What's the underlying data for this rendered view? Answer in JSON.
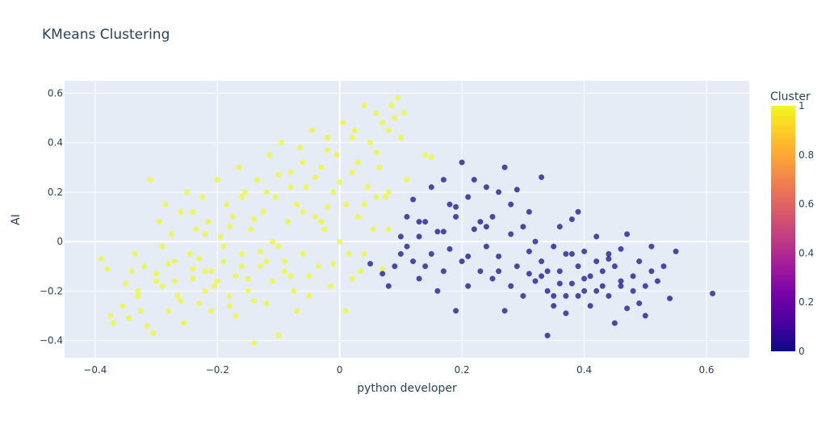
{
  "chart_data": {
    "type": "scatter",
    "title": "KMeans Clustering",
    "xlabel": "python developer",
    "ylabel": "AI",
    "xlim": [
      -0.45,
      0.67
    ],
    "ylim": [
      -0.47,
      0.65
    ],
    "xticks": [
      -0.4,
      -0.2,
      0,
      0.2,
      0.4,
      0.6
    ],
    "xtick_labels": [
      "−0.4",
      "−0.2",
      "0",
      "0.2",
      "0.4",
      "0.6"
    ],
    "yticks": [
      -0.4,
      -0.2,
      0,
      0.2,
      0.4,
      0.6
    ],
    "ytick_labels": [
      "−0.4",
      "−0.2",
      "0",
      "0.2",
      "0.4",
      "0.6"
    ],
    "grid": true,
    "colorbar": {
      "title": "Cluster",
      "ticks": [
        0,
        0.2,
        0.4,
        0.6,
        0.8,
        1
      ],
      "tick_labels": [
        "0",
        "0.2",
        "0.4",
        "0.6",
        "0.8",
        "1"
      ],
      "colorscale": [
        "#0d0887",
        "#46039f",
        "#7201a8",
        "#9c179e",
        "#bd3786",
        "#d8576b",
        "#ed7953",
        "#fb9f3a",
        "#fdca26",
        "#f0f921"
      ]
    },
    "series": [
      {
        "cluster": 1,
        "color": "#f0f921",
        "points": [
          [
            -0.39,
            -0.07
          ],
          [
            -0.38,
            -0.11
          ],
          [
            -0.375,
            -0.3
          ],
          [
            -0.37,
            -0.33
          ],
          [
            -0.355,
            -0.26
          ],
          [
            -0.35,
            -0.17
          ],
          [
            -0.345,
            -0.31
          ],
          [
            -0.34,
            -0.12
          ],
          [
            -0.335,
            -0.05
          ],
          [
            -0.33,
            -0.2
          ],
          [
            -0.325,
            -0.28
          ],
          [
            -0.32,
            -0.1
          ],
          [
            -0.315,
            -0.34
          ],
          [
            -0.31,
            0.25
          ],
          [
            -0.305,
            -0.37
          ],
          [
            -0.3,
            -0.13
          ],
          [
            -0.295,
            0.08
          ],
          [
            -0.29,
            -0.18
          ],
          [
            -0.285,
            0.15
          ],
          [
            -0.28,
            -0.28
          ],
          [
            -0.275,
            0.03
          ],
          [
            -0.27,
            -0.08
          ],
          [
            -0.265,
            -0.22
          ],
          [
            -0.26,
            0.12
          ],
          [
            -0.255,
            -0.33
          ],
          [
            -0.25,
            0.2
          ],
          [
            -0.245,
            -0.05
          ],
          [
            -0.24,
            -0.15
          ],
          [
            -0.235,
            0.05
          ],
          [
            -0.23,
            -0.25
          ],
          [
            -0.225,
            0.18
          ],
          [
            -0.22,
            -0.12
          ],
          [
            -0.215,
            0.08
          ],
          [
            -0.21,
            -0.28
          ],
          [
            -0.205,
            -0.18
          ],
          [
            -0.2,
            0.25
          ],
          [
            -0.195,
            0.02
          ],
          [
            -0.19,
            -0.08
          ],
          [
            -0.185,
            0.15
          ],
          [
            -0.18,
            -0.22
          ],
          [
            -0.175,
            0.1
          ],
          [
            -0.17,
            -0.3
          ],
          [
            -0.165,
            0.3
          ],
          [
            -0.16,
            -0.05
          ],
          [
            -0.155,
            0.2
          ],
          [
            -0.15,
            -0.15
          ],
          [
            -0.145,
            0.05
          ],
          [
            -0.14,
            -0.41
          ],
          [
            -0.135,
            0.25
          ],
          [
            -0.13,
            -0.1
          ],
          [
            -0.125,
            0.12
          ],
          [
            -0.12,
            -0.25
          ],
          [
            -0.115,
            0.35
          ],
          [
            -0.11,
            0.0
          ],
          [
            -0.105,
            0.18
          ],
          [
            -0.1,
            -0.38
          ],
          [
            -0.095,
            0.4
          ],
          [
            -0.09,
            -0.12
          ],
          [
            -0.085,
            0.08
          ],
          [
            -0.08,
            0.28
          ],
          [
            -0.075,
            -0.2
          ],
          [
            -0.07,
            0.15
          ],
          [
            -0.065,
            0.38
          ],
          [
            -0.06,
            -0.05
          ],
          [
            -0.055,
            0.22
          ],
          [
            -0.05,
            -0.22
          ],
          [
            -0.045,
            0.45
          ],
          [
            -0.04,
            0.1
          ],
          [
            -0.035,
            -0.1
          ],
          [
            -0.03,
            0.3
          ],
          [
            -0.025,
            0.05
          ],
          [
            -0.02,
            0.42
          ],
          [
            -0.015,
            -0.18
          ],
          [
            -0.01,
            0.2
          ],
          [
            -0.005,
            0.35
          ],
          [
            0.0,
            0.0
          ],
          [
            0.005,
            0.48
          ],
          [
            0.01,
            0.15
          ],
          [
            0.015,
            -0.05
          ],
          [
            0.02,
            0.28
          ],
          [
            0.025,
            0.45
          ],
          [
            0.03,
            0.1
          ],
          [
            0.035,
            -0.12
          ],
          [
            0.04,
            0.55
          ],
          [
            0.045,
            0.22
          ],
          [
            0.05,
            0.4
          ],
          [
            0.055,
            0.05
          ],
          [
            0.06,
            0.52
          ],
          [
            0.065,
            0.3
          ],
          [
            0.07,
            0.48
          ],
          [
            0.075,
            0.18
          ],
          [
            0.08,
            0.45
          ],
          [
            0.085,
            0.55
          ],
          [
            0.09,
            0.5
          ],
          [
            0.095,
            0.58
          ],
          [
            0.1,
            0.42
          ],
          [
            0.105,
            0.52
          ],
          [
            0.11,
            0.25
          ],
          [
            0.14,
            0.35
          ],
          [
            0.15,
            0.34
          ],
          [
            0.01,
            -0.28
          ],
          [
            0.02,
            -0.15
          ],
          [
            0.04,
            -0.05
          ],
          [
            0.06,
            0.18
          ],
          [
            0.07,
            -0.11
          ],
          [
            0.08,
            0.05
          ],
          [
            -0.33,
            -0.22
          ],
          [
            -0.29,
            -0.02
          ],
          [
            -0.27,
            -0.16
          ],
          [
            -0.23,
            -0.07
          ],
          [
            -0.21,
            -0.12
          ],
          [
            -0.19,
            -0.02
          ],
          [
            -0.17,
            -0.14
          ],
          [
            -0.15,
            -0.2
          ],
          [
            -0.13,
            -0.04
          ],
          [
            -0.11,
            -0.16
          ],
          [
            -0.09,
            -0.08
          ],
          [
            -0.07,
            -0.28
          ],
          [
            -0.05,
            -0.14
          ],
          [
            -0.03,
            0.08
          ],
          [
            -0.01,
            -0.09
          ],
          [
            0.03,
            0.32
          ],
          [
            -0.24,
            0.12
          ],
          [
            -0.18,
            0.06
          ],
          [
            -0.12,
            0.2
          ],
          [
            -0.08,
            0.22
          ],
          [
            -0.04,
            0.26
          ],
          [
            -0.06,
            0.12
          ],
          [
            -0.16,
            0.18
          ],
          [
            -0.22,
            -0.2
          ],
          [
            -0.26,
            -0.24
          ],
          [
            -0.2,
            -0.16
          ],
          [
            -0.14,
            -0.24
          ],
          [
            -0.1,
            -0.02
          ],
          [
            -0.02,
            0.14
          ],
          [
            0.0,
            0.24
          ],
          [
            -0.22,
            0.03
          ],
          [
            -0.18,
            -0.26
          ],
          [
            -0.24,
            -0.11
          ],
          [
            -0.28,
            -0.09
          ],
          [
            -0.3,
            -0.16
          ],
          [
            -0.16,
            -0.1
          ],
          [
            -0.12,
            -0.08
          ],
          [
            -0.08,
            -0.14
          ],
          [
            -0.14,
            0.09
          ],
          [
            -0.1,
            0.27
          ],
          [
            -0.06,
            0.32
          ],
          [
            -0.02,
            0.37
          ],
          [
            0.02,
            0.42
          ],
          [
            0.04,
            0.15
          ],
          [
            0.06,
            0.36
          ],
          [
            0.08,
            0.2
          ]
        ]
      },
      {
        "cluster": 0,
        "color": "#0d0887",
        "points": [
          [
            0.05,
            -0.09
          ],
          [
            0.07,
            -0.13
          ],
          [
            0.08,
            -0.18
          ],
          [
            0.09,
            -0.1
          ],
          [
            0.1,
            0.02
          ],
          [
            0.1,
            -0.05
          ],
          [
            0.11,
            0.1
          ],
          [
            0.12,
            -0.08
          ],
          [
            0.12,
            0.17
          ],
          [
            0.13,
            0.02
          ],
          [
            0.13,
            -0.15
          ],
          [
            0.14,
            0.08
          ],
          [
            0.15,
            -0.05
          ],
          [
            0.15,
            0.22
          ],
          [
            0.16,
            -0.2
          ],
          [
            0.16,
            0.04
          ],
          [
            0.17,
            0.25
          ],
          [
            0.17,
            -0.12
          ],
          [
            0.18,
            0.15
          ],
          [
            0.18,
            -0.03
          ],
          [
            0.19,
            -0.28
          ],
          [
            0.19,
            0.1
          ],
          [
            0.2,
            0.32
          ],
          [
            0.2,
            -0.08
          ],
          [
            0.21,
            0.18
          ],
          [
            0.21,
            -0.18
          ],
          [
            0.22,
            0.05
          ],
          [
            0.22,
            0.25
          ],
          [
            0.23,
            -0.12
          ],
          [
            0.23,
            0.08
          ],
          [
            0.24,
            -0.02
          ],
          [
            0.24,
            0.22
          ],
          [
            0.25,
            -0.15
          ],
          [
            0.25,
            0.1
          ],
          [
            0.26,
            -0.06
          ],
          [
            0.26,
            0.2
          ],
          [
            0.27,
            0.3
          ],
          [
            0.27,
            -0.28
          ],
          [
            0.28,
            0.03
          ],
          [
            0.28,
            -0.18
          ],
          [
            0.29,
            0.21
          ],
          [
            0.29,
            -0.1
          ],
          [
            0.3,
            0.06
          ],
          [
            0.3,
            -0.22
          ],
          [
            0.31,
            -0.04
          ],
          [
            0.31,
            0.12
          ],
          [
            0.32,
            -0.16
          ],
          [
            0.32,
            0.0
          ],
          [
            0.33,
            -0.08
          ],
          [
            0.33,
            0.26
          ],
          [
            0.34,
            -0.38
          ],
          [
            0.34,
            -0.2
          ],
          [
            0.35,
            -0.02
          ],
          [
            0.35,
            -0.26
          ],
          [
            0.36,
            -0.12
          ],
          [
            0.36,
            0.06
          ],
          [
            0.37,
            -0.22
          ],
          [
            0.37,
            -0.05
          ],
          [
            0.38,
            0.09
          ],
          [
            0.38,
            -0.17
          ],
          [
            0.39,
            -0.1
          ],
          [
            0.39,
            0.12
          ],
          [
            0.4,
            -0.2
          ],
          [
            0.4,
            -0.04
          ],
          [
            0.41,
            -0.14
          ],
          [
            0.41,
            -0.26
          ],
          [
            0.42,
            -0.08
          ],
          [
            0.42,
            0.02
          ],
          [
            0.43,
            -0.18
          ],
          [
            0.43,
            -0.12
          ],
          [
            0.44,
            -0.05
          ],
          [
            0.44,
            -0.22
          ],
          [
            0.45,
            -0.33
          ],
          [
            0.45,
            -0.1
          ],
          [
            0.46,
            -0.16
          ],
          [
            0.46,
            -0.03
          ],
          [
            0.47,
            -0.27
          ],
          [
            0.47,
            0.03
          ],
          [
            0.48,
            -0.14
          ],
          [
            0.48,
            -0.2
          ],
          [
            0.49,
            -0.08
          ],
          [
            0.49,
            -0.25
          ],
          [
            0.5,
            -0.18
          ],
          [
            0.5,
            -0.3
          ],
          [
            0.51,
            -0.12
          ],
          [
            0.51,
            -0.02
          ],
          [
            0.52,
            -0.16
          ],
          [
            0.53,
            -0.1
          ],
          [
            0.54,
            -0.23
          ],
          [
            0.55,
            -0.04
          ],
          [
            0.61,
            -0.21
          ],
          [
            0.11,
            -0.02
          ],
          [
            0.13,
            0.08
          ],
          [
            0.14,
            -0.1
          ],
          [
            0.17,
            0.04
          ],
          [
            0.19,
            0.14
          ],
          [
            0.21,
            -0.06
          ],
          [
            0.24,
            0.06
          ],
          [
            0.26,
            -0.12
          ],
          [
            0.28,
            0.15
          ],
          [
            0.31,
            -0.13
          ],
          [
            0.34,
            -0.12
          ],
          [
            0.36,
            -0.17
          ],
          [
            0.38,
            -0.05
          ],
          [
            0.4,
            -0.15
          ],
          [
            0.42,
            -0.2
          ],
          [
            0.44,
            -0.07
          ],
          [
            0.46,
            -0.18
          ],
          [
            0.35,
            -0.22
          ],
          [
            0.33,
            -0.14
          ],
          [
            0.37,
            -0.29
          ],
          [
            0.39,
            -0.22
          ]
        ]
      }
    ]
  }
}
